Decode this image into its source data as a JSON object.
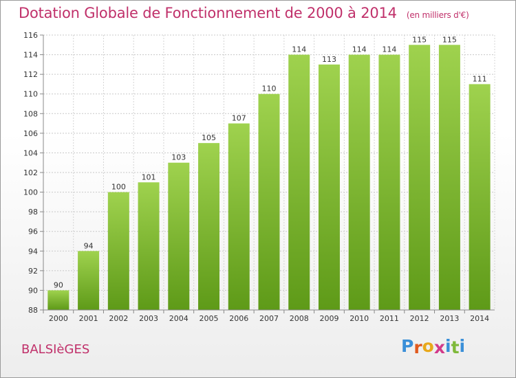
{
  "chart_data": {
    "type": "bar",
    "title": "Dotation Globale de Fonctionnement de 2000 à 2014",
    "subtitle": "(en milliers d'€)",
    "categories": [
      "2000",
      "2001",
      "2002",
      "2003",
      "2004",
      "2005",
      "2006",
      "2007",
      "2008",
      "2009",
      "2010",
      "2011",
      "2012",
      "2013",
      "2014"
    ],
    "values": [
      90,
      94,
      100,
      101,
      103,
      105,
      107,
      110,
      114,
      113,
      114,
      114,
      115,
      115,
      111
    ],
    "ylim": [
      88,
      116
    ],
    "yticks": [
      "88",
      "90",
      "92",
      "94",
      "96",
      "98",
      "100",
      "102",
      "104",
      "106",
      "108",
      "110",
      "112",
      "114",
      "116"
    ],
    "grid": true,
    "bar_color": "#7fc13a"
  },
  "footer": {
    "commune": "BALSIèGES",
    "logo_letters": [
      "P",
      "r",
      "o",
      "x",
      "i",
      "t",
      "i"
    ],
    "logo_colors": [
      "#3a8fd8",
      "#e05a1e",
      "#e8a81a",
      "#d23a8a",
      "#3a8fd8",
      "#7fb93a",
      "#3a8fd8"
    ]
  }
}
